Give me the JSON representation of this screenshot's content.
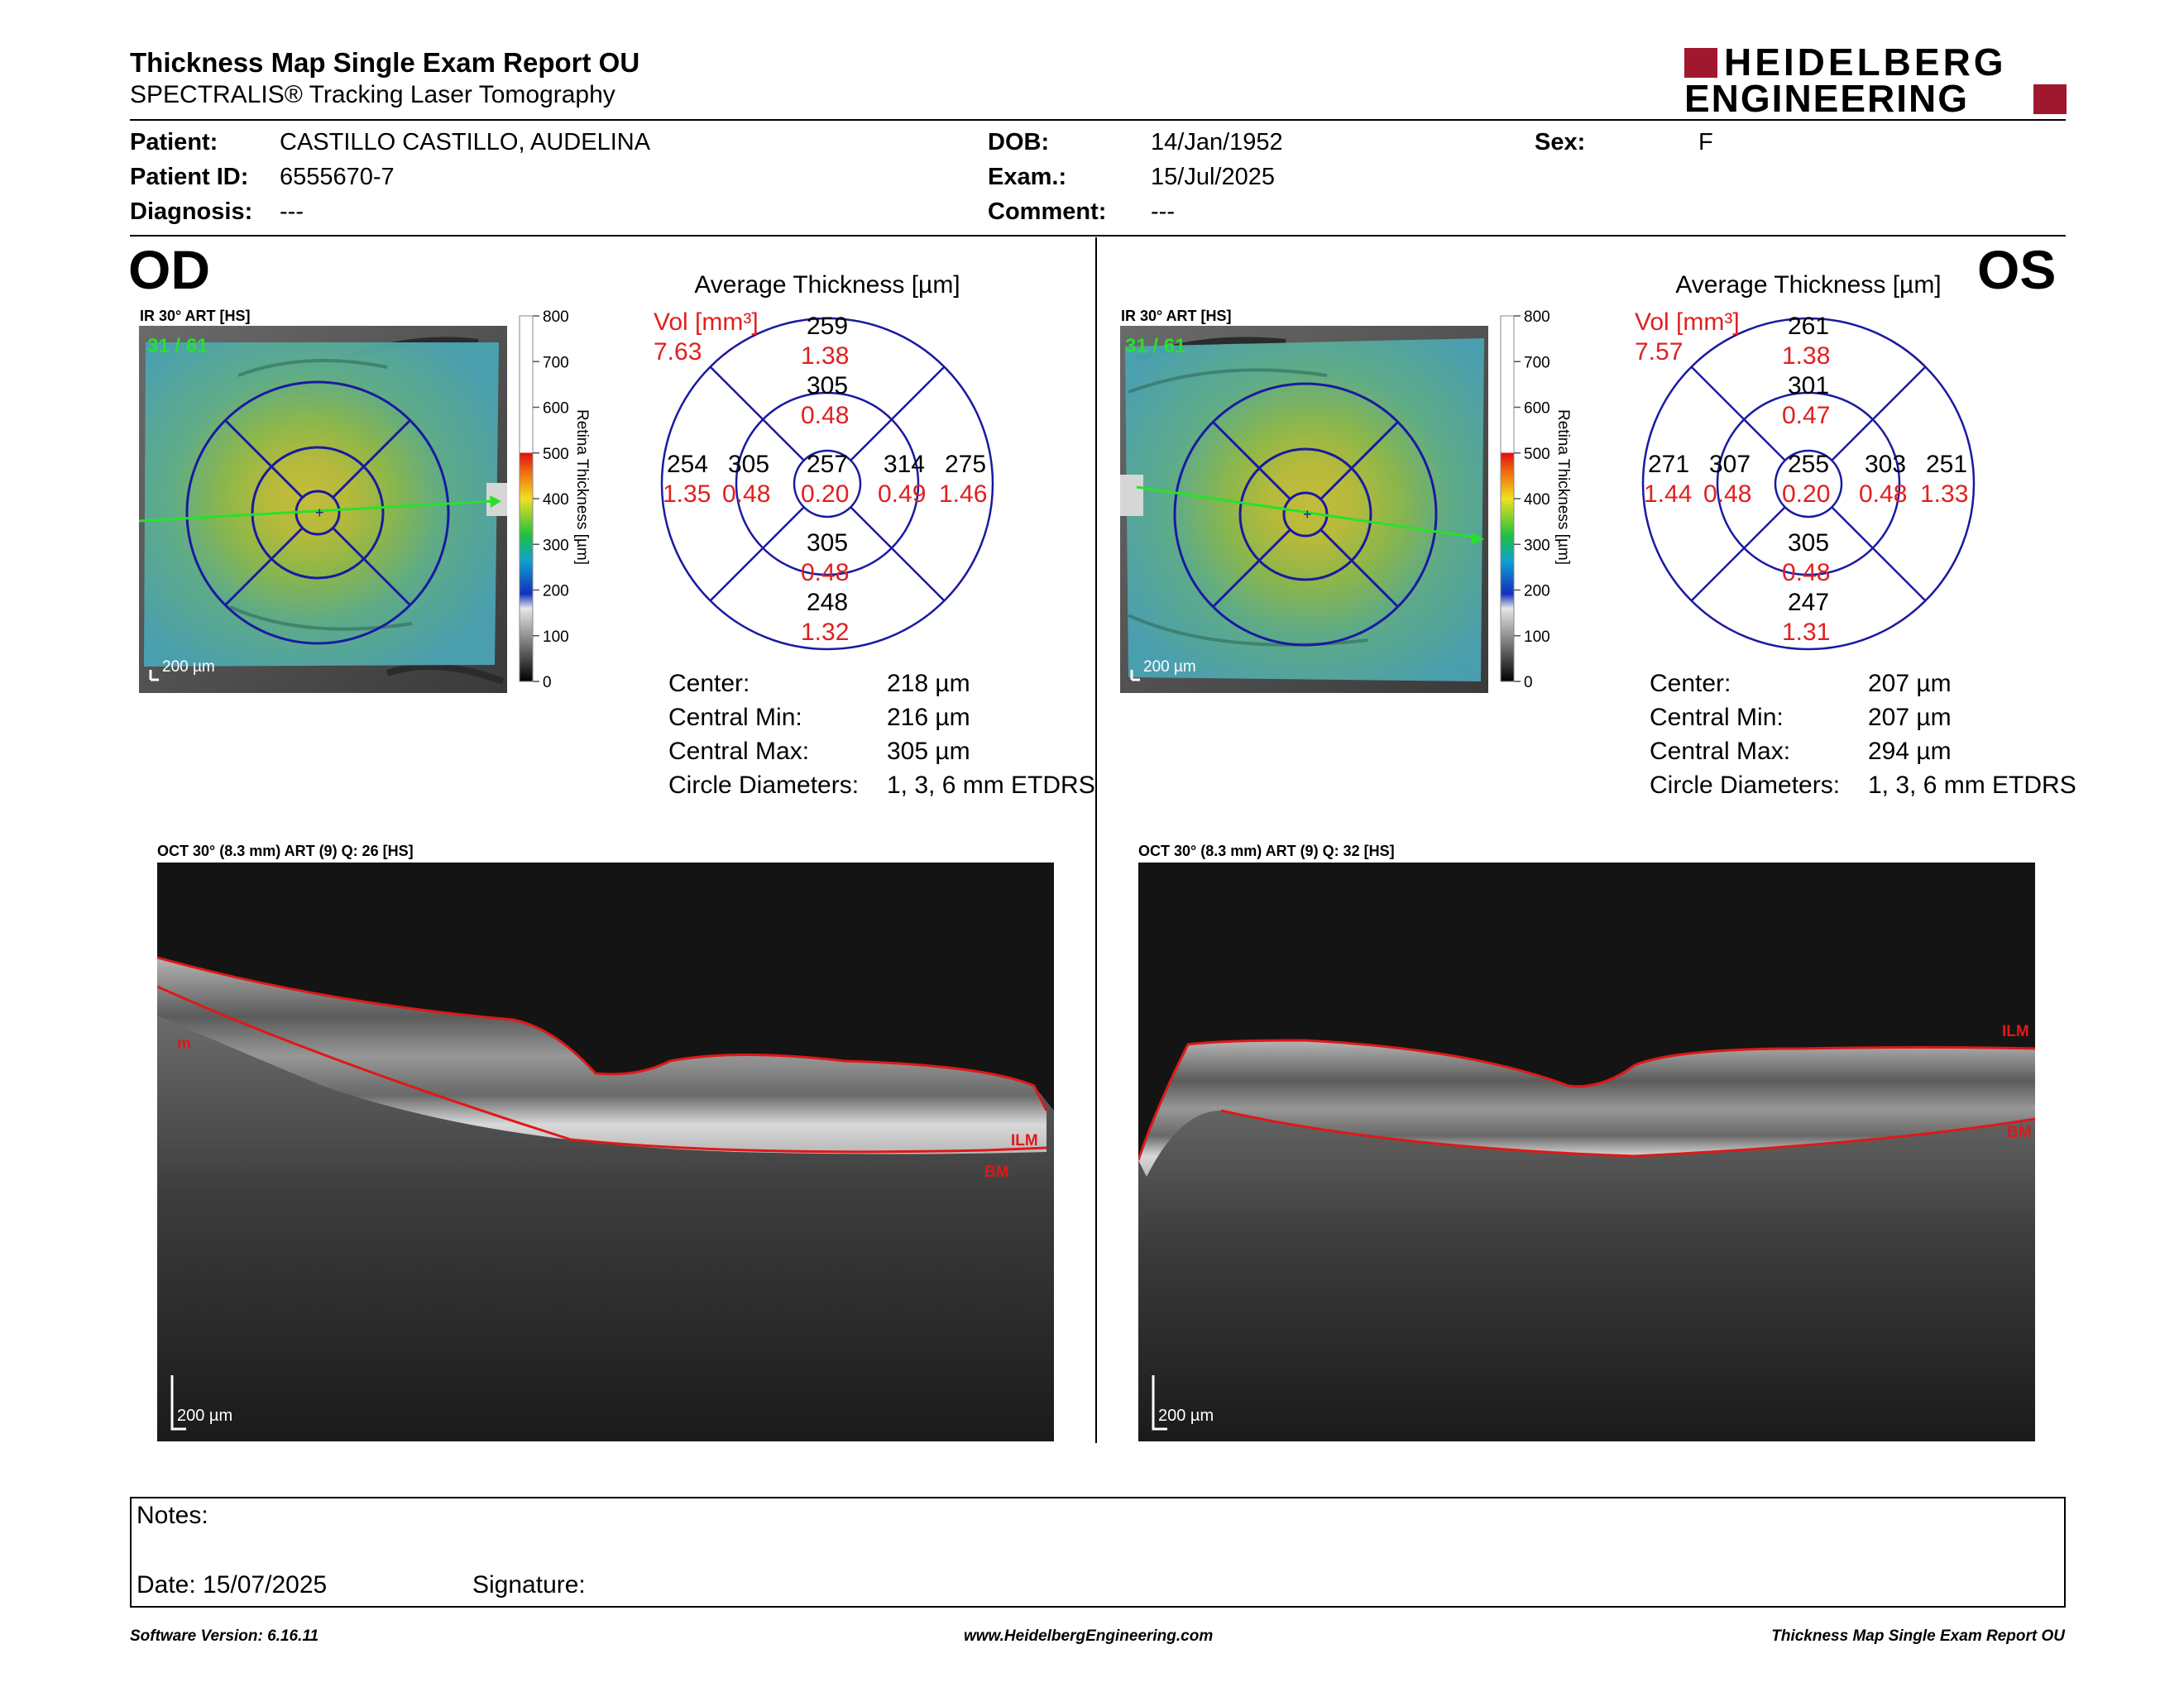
{
  "header": {
    "title": "Thickness Map Single Exam Report OU",
    "subtitle": "SPECTRALIS® Tracking Laser Tomography",
    "logo_line1": "HEIDELBERG",
    "logo_line2": "ENGINEERING",
    "brand_color": "#a0182e"
  },
  "patient": {
    "patient_label": "Patient:",
    "patient_value": "CASTILLO CASTILLO, AUDELINA",
    "patient_id_label": "Patient ID:",
    "patient_id_value": "6555670-7",
    "diagnosis_label": "Diagnosis:",
    "diagnosis_value": "---",
    "dob_label": "DOB:",
    "dob_value": "14/Jan/1952",
    "exam_label": "Exam.:",
    "exam_value": "15/Jul/2025",
    "comment_label": "Comment:",
    "comment_value": "---",
    "sex_label": "Sex:",
    "sex_value": "F"
  },
  "scale_ticks": [
    "800",
    "700",
    "600",
    "500",
    "400",
    "300",
    "200",
    "100",
    "0"
  ],
  "scale_title": "Retina Thickness [µm]",
  "od": {
    "eye": "OD",
    "ir_label": "IR 30° ART [HS]",
    "frames": "31 / 61",
    "scalebar": "200 µm",
    "avg_title": "Average Thickness [µm]",
    "vol_label": "Vol [mm³]",
    "vol_value": "7.63",
    "sectors": {
      "outer_sup": {
        "t": "259",
        "v": "1.38"
      },
      "inner_sup": {
        "t": "305",
        "v": "0.48"
      },
      "outer_temp": {
        "t": "254",
        "v": "1.35"
      },
      "inner_temp": {
        "t": "305",
        "v": "0.48"
      },
      "center": {
        "t": "257",
        "v": "0.20"
      },
      "inner_nas": {
        "t": "314",
        "v": "0.49"
      },
      "outer_nas": {
        "t": "275",
        "v": "1.46"
      },
      "inner_inf": {
        "t": "305",
        "v": "0.48"
      },
      "outer_inf": {
        "t": "248",
        "v": "1.32"
      }
    },
    "stats": {
      "center_label": "Center:",
      "center_value": "218 µm",
      "min_label": "Central Min:",
      "min_value": "216 µm",
      "max_label": "Central Max:",
      "max_value": "305 µm",
      "diam_label": "Circle Diameters:",
      "diam_value": "1, 3, 6 mm ETDRS"
    },
    "oct_label": "OCT 30° (8.3 mm) ART (9) Q: 26 [HS]",
    "oct_scalebar": "200 µm",
    "oct_tags": {
      "a": "m",
      "b": "ILM",
      "c": "BM"
    }
  },
  "os": {
    "eye": "OS",
    "ir_label": "IR 30° ART [HS]",
    "frames": "31 / 61",
    "scalebar": "200 µm",
    "avg_title": "Average Thickness [µm]",
    "vol_label": "Vol [mm³]",
    "vol_value": "7.57",
    "sectors": {
      "outer_sup": {
        "t": "261",
        "v": "1.38"
      },
      "inner_sup": {
        "t": "301",
        "v": "0.47"
      },
      "outer_temp": {
        "t": "271",
        "v": "1.44"
      },
      "inner_temp": {
        "t": "307",
        "v": "0.48"
      },
      "center": {
        "t": "255",
        "v": "0.20"
      },
      "inner_nas": {
        "t": "303",
        "v": "0.48"
      },
      "outer_nas": {
        "t": "251",
        "v": "1.33"
      },
      "inner_inf": {
        "t": "305",
        "v": "0.48"
      },
      "outer_inf": {
        "t": "247",
        "v": "1.31"
      }
    },
    "stats": {
      "center_label": "Center:",
      "center_value": "207 µm",
      "min_label": "Central Min:",
      "min_value": "207 µm",
      "max_label": "Central Max:",
      "max_value": "294 µm",
      "diam_label": "Circle Diameters:",
      "diam_value": "1, 3, 6 mm ETDRS"
    },
    "oct_label": "OCT 30° (8.3 mm) ART (9) Q: 32 [HS]",
    "oct_scalebar": "200 µm",
    "oct_tags": {
      "a": "ILM",
      "b": "BM"
    }
  },
  "notes": {
    "notes_label": "Notes:",
    "date_label": "Date: 15/07/2025",
    "signature_label": "Signature:"
  },
  "footer": {
    "left": "Software Version: 6.16.11",
    "center": "www.HeidelbergEngineering.com",
    "right": "Thickness Map Single Exam Report OU"
  }
}
